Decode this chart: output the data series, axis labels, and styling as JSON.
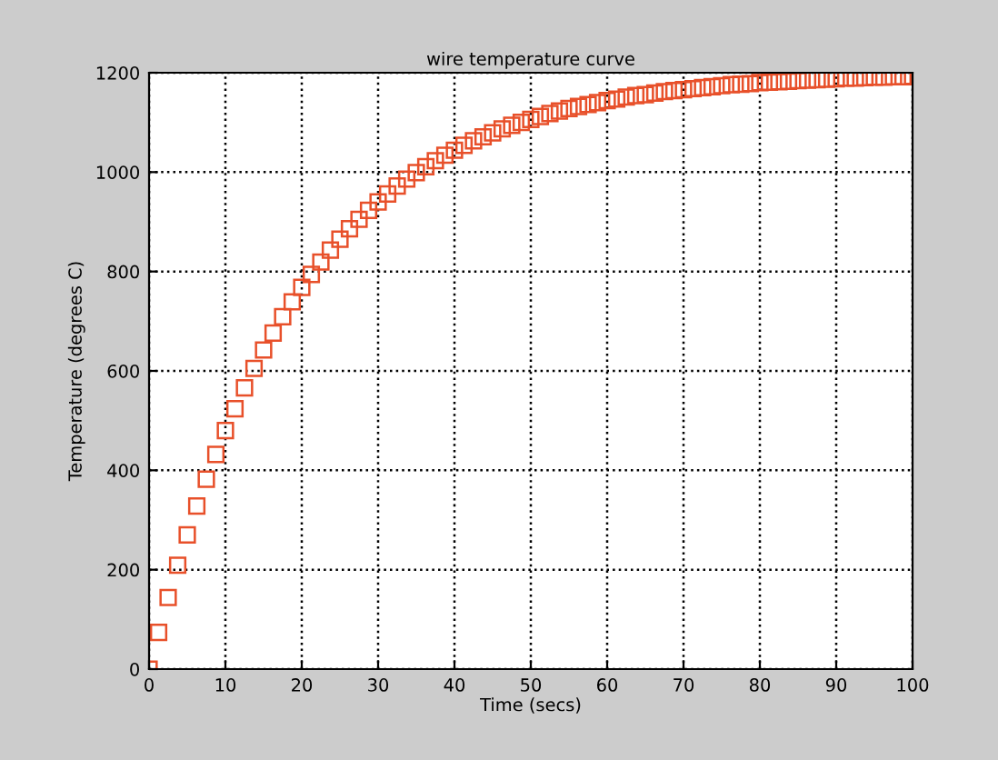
{
  "chart_data": {
    "type": "scatter",
    "title": "wire temperature curve",
    "xlabel": "Time (secs)",
    "ylabel": "Temperature (degrees C)",
    "x": [
      0,
      1.25,
      2.5,
      3.75,
      5,
      6.25,
      7.5,
      8.75,
      10,
      11.25,
      12.5,
      13.75,
      15,
      16.25,
      17.5,
      18.75,
      20,
      21.25,
      22.5,
      23.75,
      25,
      26.25,
      27.5,
      28.75,
      30,
      31.25,
      32.5,
      33.75,
      35,
      36.25,
      37.5,
      38.75,
      40,
      41.25,
      42.5,
      43.75,
      45,
      46.25,
      47.5,
      48.75,
      50,
      51.25,
      52.5,
      53.75,
      55,
      56.25,
      57.5,
      58.75,
      60,
      61.25,
      62.5,
      63.75,
      65,
      66.25,
      67.5,
      68.75,
      70,
      71.25,
      72.5,
      73.75,
      75,
      76.25,
      77.5,
      78.75,
      80,
      81.25,
      82.5,
      83.75,
      85,
      86.25,
      87.5,
      88.75,
      90,
      91.25,
      92.5,
      93.75,
      95,
      96.25,
      97.5,
      98.75,
      100
    ],
    "series": [
      {
        "color": "#e8502a",
        "values": [
          0,
          74,
          144,
          209,
          270,
          328,
          382,
          432,
          480,
          524,
          566,
          605,
          642,
          676,
          709,
          739,
          768,
          794,
          819,
          843,
          865,
          886,
          905,
          923,
          940,
          956,
          972,
          986,
          999,
          1011,
          1023,
          1034,
          1044,
          1054,
          1063,
          1071,
          1079,
          1087,
          1094,
          1100,
          1106,
          1112,
          1118,
          1123,
          1128,
          1132,
          1136,
          1140,
          1144,
          1147,
          1151,
          1154,
          1156,
          1159,
          1162,
          1164,
          1166,
          1168,
          1170,
          1172,
          1174,
          1176,
          1177,
          1178,
          1180,
          1181,
          1182,
          1183,
          1184,
          1185,
          1186,
          1187,
          1188,
          1189,
          1189,
          1190,
          1191,
          1191,
          1192,
          1192,
          1193
        ]
      }
    ],
    "xlim": [
      0,
      100
    ],
    "xticks": [
      0,
      10,
      20,
      30,
      40,
      50,
      60,
      70,
      80,
      90,
      100
    ],
    "ylim": [
      0,
      1200
    ],
    "yticks": [
      0,
      200,
      400,
      600,
      800,
      1000,
      1200
    ],
    "grid": true,
    "marker": "square",
    "line_style": "none"
  }
}
